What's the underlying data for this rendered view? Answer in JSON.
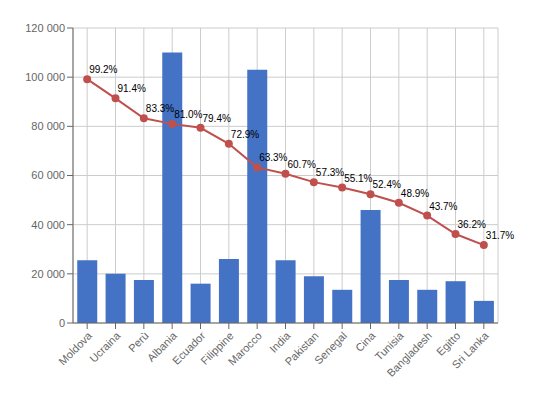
{
  "chart_data": {
    "type": "bar",
    "categories": [
      "Moldova",
      "Ucraina",
      "Perù",
      "Albania",
      "Ecuador",
      "Filippine",
      "Marocco",
      "India",
      "Pakistan",
      "Senegal",
      "Cina",
      "Tunisia",
      "Bangladesh",
      "Egitto",
      "Sri Lanka"
    ],
    "series": [
      {
        "type": "bar",
        "color": "#4472C4",
        "values": [
          25500,
          20000,
          17500,
          110000,
          16000,
          26000,
          103000,
          25500,
          19000,
          13500,
          46000,
          17500,
          13500,
          17000,
          9000
        ]
      },
      {
        "type": "line",
        "axis": "y2",
        "color": "#C0504D",
        "marker": "circle",
        "data_labels": true,
        "values": [
          99.2,
          91.4,
          83.3,
          81.0,
          79.4,
          72.9,
          63.3,
          60.7,
          57.3,
          55.1,
          52.4,
          48.9,
          43.7,
          36.2,
          31.7
        ],
        "value_labels": [
          "99.2%",
          "91.4%",
          "83.3%",
          "81.0%",
          "79.4%",
          "72.9%",
          "63.3%",
          "60.7%",
          "57.3%",
          "55.1%",
          "52.4%",
          "48.9%",
          "43.7%",
          "36.2%",
          "31.7%"
        ]
      }
    ],
    "ylim": [
      0,
      120000
    ],
    "yticks": [
      0,
      {
        "value": 20000,
        "label": "20 000"
      },
      {
        "value": 40000,
        "label": "40 000"
      },
      {
        "value": 60000,
        "label": "60 000"
      },
      {
        "value": 80000,
        "label": "80 000"
      },
      {
        "value": 100000,
        "label": "100 000"
      },
      {
        "value": 120000,
        "label": "120 000"
      }
    ],
    "y2lim": [
      0,
      120
    ],
    "y2ticks": [],
    "grid": true
  }
}
